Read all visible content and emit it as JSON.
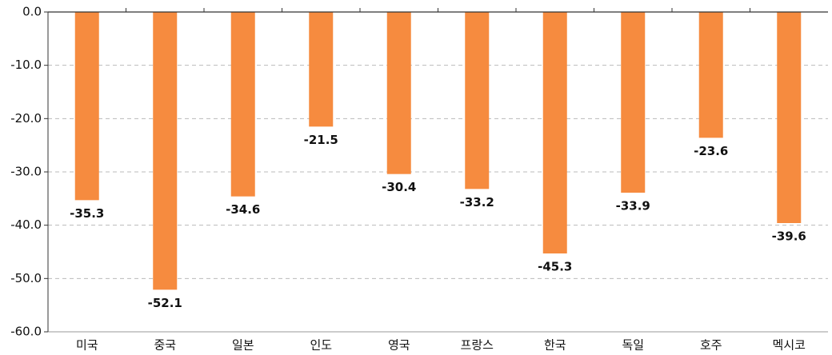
{
  "chart_data": {
    "type": "bar",
    "categories": [
      "미국",
      "중국",
      "일본",
      "인도",
      "영국",
      "프랑스",
      "한국",
      "독일",
      "호주",
      "멕시코"
    ],
    "values": [
      -35.3,
      -52.1,
      -34.6,
      -21.5,
      -30.4,
      -33.2,
      -45.3,
      -33.9,
      -23.6,
      -39.6
    ],
    "color": "#f68b3f",
    "ylim": [
      -60,
      0
    ],
    "yticks": [
      {
        "value": 0,
        "label": "0.0"
      },
      {
        "value": -10,
        "label": "-10.0"
      },
      {
        "value": -20,
        "label": "-20.0"
      },
      {
        "value": -30,
        "label": "-30.0"
      },
      {
        "value": -40,
        "label": "-40.0"
      },
      {
        "value": -50,
        "label": "-50.0"
      },
      {
        "value": -60,
        "label": "-60.0"
      }
    ],
    "grid": true
  }
}
